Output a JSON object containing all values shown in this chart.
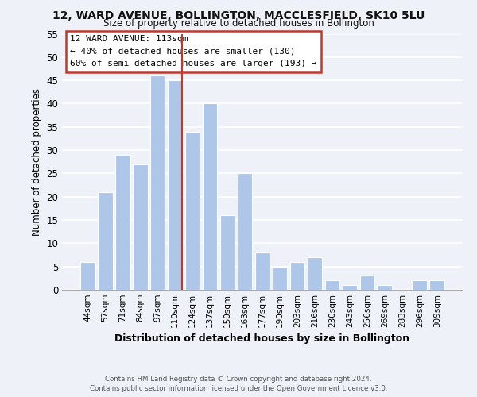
{
  "title": "12, WARD AVENUE, BOLLINGTON, MACCLESFIELD, SK10 5LU",
  "subtitle": "Size of property relative to detached houses in Bollington",
  "xlabel": "Distribution of detached houses by size in Bollington",
  "ylabel": "Number of detached properties",
  "bar_labels": [
    "44sqm",
    "57sqm",
    "71sqm",
    "84sqm",
    "97sqm",
    "110sqm",
    "124sqm",
    "137sqm",
    "150sqm",
    "163sqm",
    "177sqm",
    "190sqm",
    "203sqm",
    "216sqm",
    "230sqm",
    "243sqm",
    "256sqm",
    "269sqm",
    "283sqm",
    "296sqm",
    "309sqm"
  ],
  "bar_values": [
    6,
    21,
    29,
    27,
    46,
    45,
    34,
    40,
    16,
    25,
    8,
    5,
    6,
    7,
    2,
    1,
    3,
    1,
    0,
    2,
    2
  ],
  "bar_color": "#aec6e8",
  "highlight_line_color": "#c0392b",
  "ylim": [
    0,
    55
  ],
  "yticks": [
    0,
    5,
    10,
    15,
    20,
    25,
    30,
    35,
    40,
    45,
    50,
    55
  ],
  "annotation_title": "12 WARD AVENUE: 113sqm",
  "annotation_line1": "← 40% of detached houses are smaller (130)",
  "annotation_line2": "60% of semi-detached houses are larger (193) →",
  "footer1": "Contains HM Land Registry data © Crown copyright and database right 2024.",
  "footer2": "Contains public sector information licensed under the Open Government Licence v3.0.",
  "background_color": "#eef2f8",
  "grid_color": "#ffffff"
}
